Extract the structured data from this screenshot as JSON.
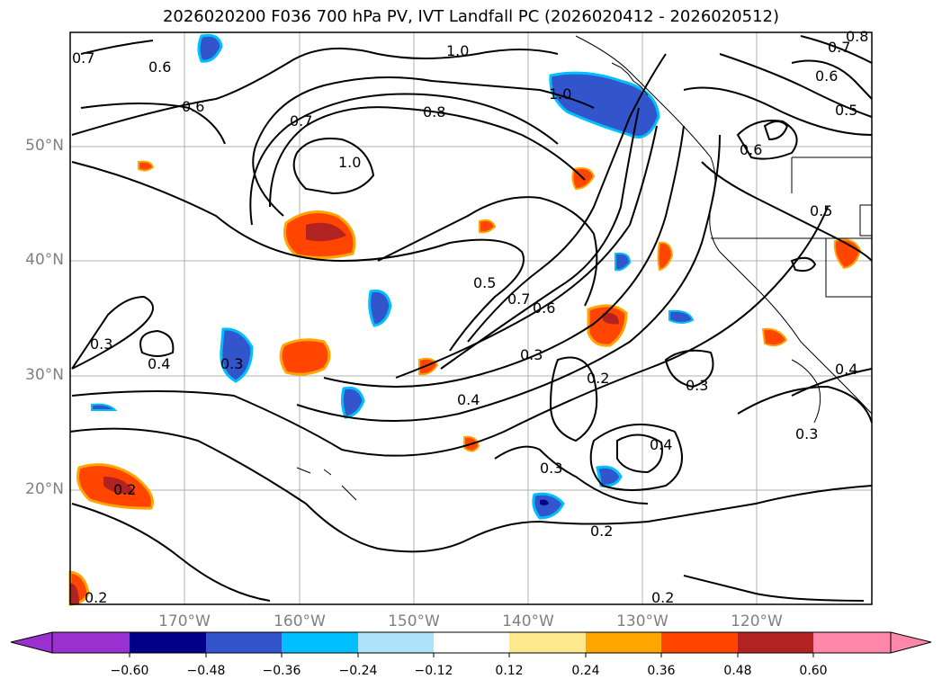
{
  "title": "2026020200 F036 700 hPa PV, IVT Landfall PC (2026020412 - 2026020512)",
  "lat_labels": [
    "50°N",
    "40°N",
    "30°N",
    "20°N"
  ],
  "lon_labels": [
    "170°W",
    "160°W",
    "150°W",
    "140°W",
    "130°W",
    "120°W"
  ],
  "contour_labels": [
    "0.7",
    "0.6",
    "0.6",
    "0.7",
    "1.0",
    "1.0",
    "0.8",
    "1.0",
    "0.7",
    "0.6",
    "0.5",
    "0.6",
    "0.5",
    "0.5",
    "0.7",
    "0.6",
    "0.3",
    "0.4",
    "0.3",
    "0.3",
    "0.4",
    "0.2",
    "0.3",
    "0.4",
    "0.3",
    "0.4",
    "0.3",
    "0.2",
    "0.2",
    "0.2",
    "0.2",
    "0.8"
  ],
  "colorbar": {
    "ticks": [
      "−0.60",
      "−0.48",
      "−0.36",
      "−0.24",
      "−0.12",
      "0.12",
      "0.24",
      "0.36",
      "0.48",
      "0.60"
    ],
    "colors": [
      "#9b30d0",
      "#00008b",
      "#3355cc",
      "#00bfff",
      "#aee2fa",
      "#ffffff",
      "#fde98d",
      "#ffa500",
      "#ff4500",
      "#b22222",
      "#ff88aa"
    ]
  }
}
